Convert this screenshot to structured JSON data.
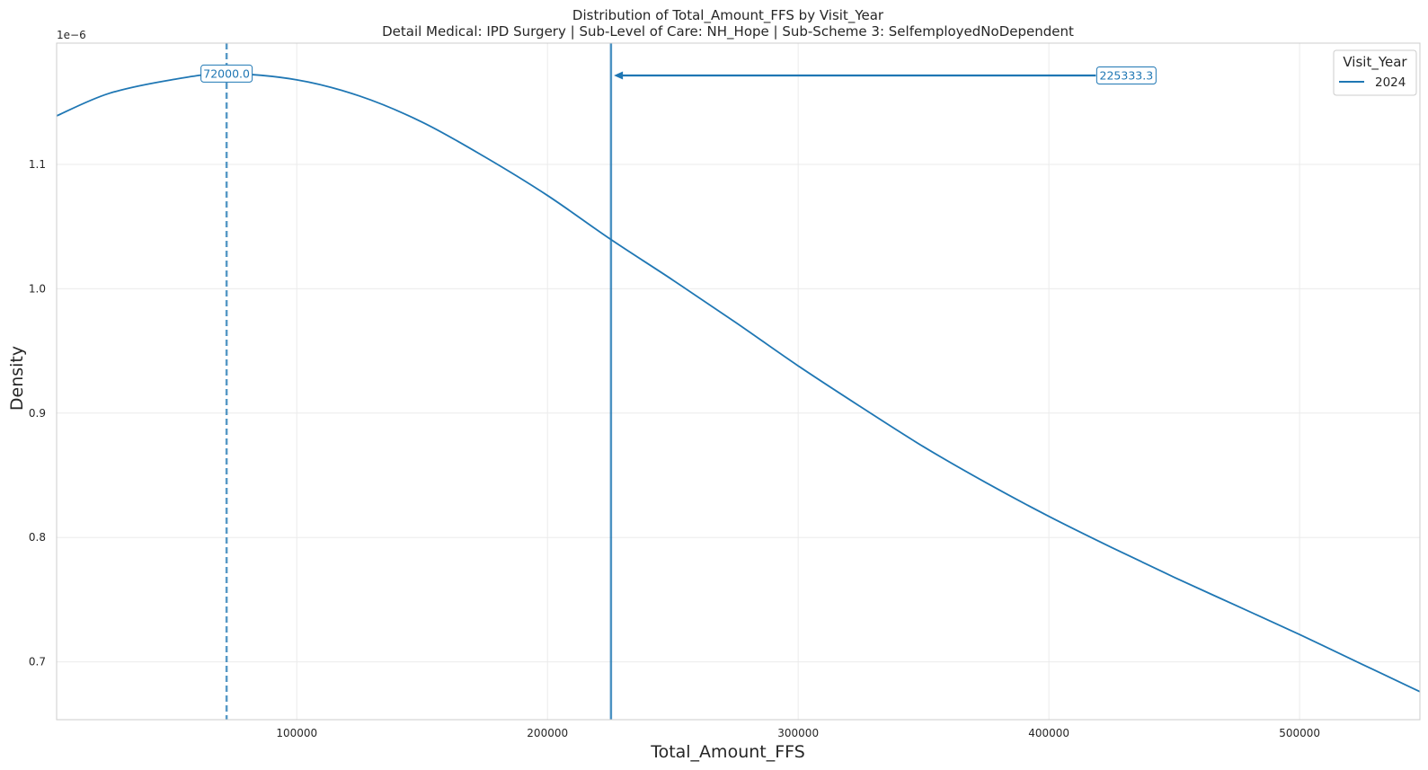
{
  "chart_data": {
    "type": "line",
    "title": "Distribution of Total_Amount_FFS by Visit_Year",
    "subtitle": "Detail Medical: IPD Surgery | Sub-Level of Care: NH_Hope | Sub-Scheme 3: SelfemployedNoDependent",
    "xlabel": "Total_Amount_FFS",
    "ylabel": "Density",
    "y_offset_label": "1e−6",
    "xlim": [
      4200,
      548000
    ],
    "ylim": [
      0.6535,
      1.1975
    ],
    "xticks": [
      100000,
      200000,
      300000,
      400000,
      500000
    ],
    "xtick_labels": [
      "100000",
      "200000",
      "300000",
      "400000",
      "500000"
    ],
    "yticks": [
      0.7,
      0.8,
      0.9,
      1.0,
      1.1
    ],
    "ytick_labels": [
      "0.7",
      "0.8",
      "0.9",
      "1.0",
      "1.1"
    ],
    "grid": true,
    "legend": {
      "title": "Visit_Year",
      "placement": "top-right"
    },
    "color": "#1f77b4",
    "series": [
      {
        "name": "2024",
        "x": [
          4200,
          25000,
          50000,
          72000,
          100000,
          125000,
          150000,
          175000,
          200000,
          225000,
          250000,
          275000,
          300000,
          325000,
          350000,
          375000,
          400000,
          425000,
          450000,
          475000,
          500000,
          525000,
          548000
        ],
        "y": [
          1.139,
          1.157,
          1.168,
          1.173,
          1.168,
          1.155,
          1.134,
          1.106,
          1.075,
          1.04,
          1.007,
          0.973,
          0.938,
          0.905,
          0.873,
          0.844,
          0.817,
          0.792,
          0.768,
          0.745,
          0.722,
          0.698,
          0.676
        ]
      }
    ],
    "vlines": [
      {
        "x": 72000,
        "style": "dashed",
        "label": "72000.0"
      },
      {
        "x": 225333.3,
        "style": "solid",
        "label": "225333.3"
      }
    ],
    "annotations": [
      {
        "text": "72000.0",
        "x": 72000,
        "y": 1.173
      },
      {
        "text": "225333.3",
        "x": 418000,
        "y": 1.1715,
        "arrow_to": {
          "x": 226500,
          "y": 1.1715
        }
      }
    ]
  }
}
